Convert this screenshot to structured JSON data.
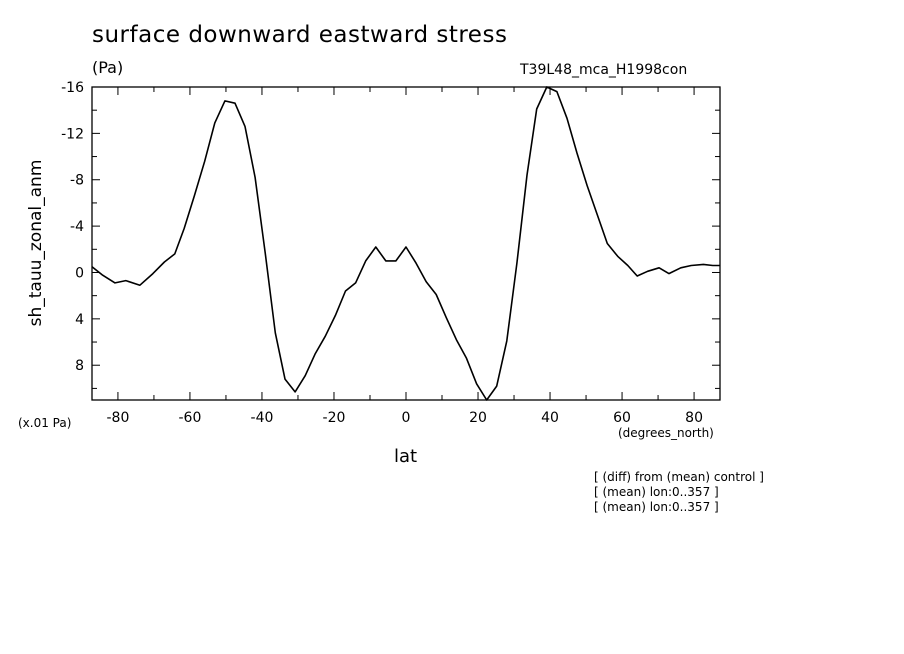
{
  "header": {
    "title": "surface downward eastward stress",
    "units": "(Pa)",
    "dataset": "T39L48_mca_H1998con"
  },
  "axes": {
    "y_scale_note": "(x.01 Pa)",
    "x_units": "(degrees_north)"
  },
  "notes": [
    "[ (diff) from (mean) control ]",
    "[ (mean) lon:0..357 ]",
    "[ (mean) lon:0..357 ]"
  ],
  "chart_data": {
    "type": "line",
    "title": "surface downward eastward stress",
    "xlabel": "lat",
    "ylabel": "sh_tauu_zonal_anm",
    "xlim": [
      -87.2,
      87.2
    ],
    "ylim": [
      -16,
      11
    ],
    "y_inverted": true,
    "grid": false,
    "x_ticks": [
      -80,
      -60,
      -40,
      -20,
      0,
      20,
      40,
      60,
      80
    ],
    "x_tick_labels": [
      "-80",
      "-60",
      "-40",
      "-20",
      "0",
      "20",
      "40",
      "60",
      "80"
    ],
    "y_ticks": [
      -16,
      -12,
      -8,
      -4,
      0,
      4,
      8
    ],
    "y_tick_labels": [
      "-16",
      "-12",
      "-8",
      "-4",
      "0",
      "4",
      "8"
    ],
    "series": [
      {
        "color": "#000000",
        "x": [
          -87.2,
          -84.4,
          -80.8,
          -77.8,
          -73.9,
          -70.3,
          -67.1,
          -64.2,
          -61.6,
          -58.8,
          -55.9,
          -53.1,
          -50.3,
          -47.5,
          -44.7,
          -41.9,
          -39.1,
          -36.3,
          -33.6,
          -30.8,
          -28.0,
          -25.2,
          -22.4,
          -19.6,
          -16.8,
          -14.0,
          -11.2,
          -8.4,
          -5.6,
          -2.8,
          0.0,
          2.8,
          5.6,
          8.4,
          11.2,
          14.0,
          16.8,
          19.6,
          22.4,
          25.2,
          28.0,
          30.8,
          33.6,
          36.3,
          39.1,
          41.9,
          44.7,
          47.5,
          50.3,
          53.1,
          55.9,
          58.8,
          61.6,
          64.2,
          67.1,
          70.3,
          73.0,
          76.3,
          79.2,
          82.6,
          85.2,
          87.2
        ],
        "y": [
          -0.5,
          0.2,
          0.9,
          0.7,
          1.1,
          0.1,
          -0.9,
          -1.6,
          -3.8,
          -6.6,
          -9.6,
          -12.9,
          -14.8,
          -14.6,
          -12.6,
          -8.2,
          -1.7,
          5.2,
          9.2,
          10.3,
          8.9,
          7.0,
          5.5,
          3.7,
          1.6,
          0.9,
          -1.0,
          -2.2,
          -1.0,
          -1.0,
          -2.2,
          -0.8,
          0.8,
          1.9,
          3.9,
          5.8,
          7.4,
          9.6,
          11.0,
          9.8,
          5.9,
          -0.8,
          -8.4,
          -14.1,
          -16.0,
          -15.6,
          -13.3,
          -10.3,
          -7.5,
          -5.0,
          -2.5,
          -1.4,
          -0.6,
          0.3,
          -0.1,
          -0.4,
          0.1,
          -0.4,
          -0.6,
          -0.7,
          -0.6,
          -0.6
        ]
      }
    ]
  }
}
